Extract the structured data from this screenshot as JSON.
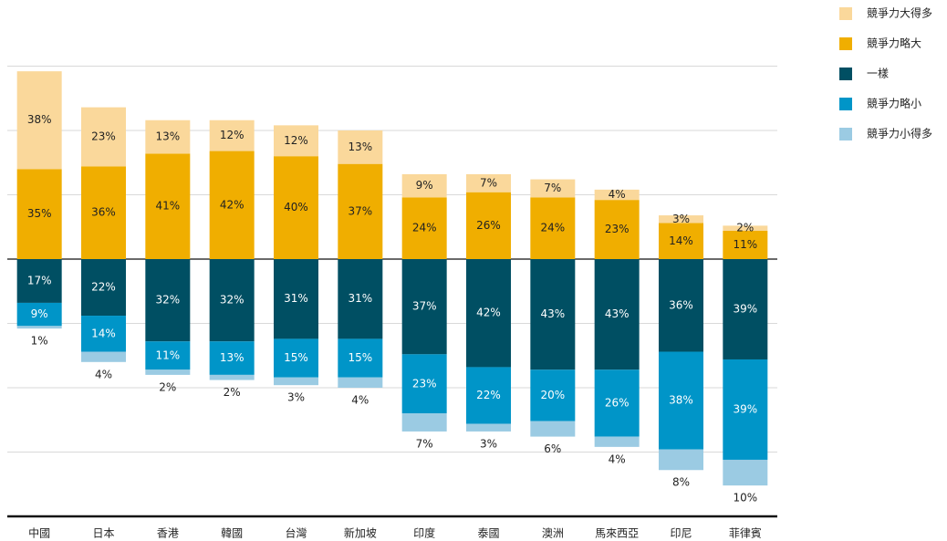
{
  "chart_data": {
    "type": "bar",
    "stacked": true,
    "categories": [
      "中國",
      "日本",
      "香港",
      "韓國",
      "台灣",
      "新加坡",
      "印度",
      "泰國",
      "澳洲",
      "馬來西亞",
      "印尼",
      "菲律賓"
    ],
    "series": [
      {
        "name": "競爭力大得多",
        "color": "#fad89b",
        "values": [
          38,
          23,
          13,
          12,
          12,
          13,
          9,
          7,
          7,
          4,
          3,
          2
        ],
        "value_labels": [
          "38%",
          "23%",
          "13%",
          "12%",
          "12%",
          "13%",
          "9%",
          "7%",
          "7%",
          "4%",
          "3%",
          "2%"
        ]
      },
      {
        "name": "競爭力略大",
        "color": "#f0ae00",
        "values": [
          35,
          36,
          41,
          42,
          40,
          37,
          24,
          26,
          24,
          23,
          14,
          11
        ],
        "value_labels": [
          "35%",
          "36%",
          "41%",
          "42%",
          "40%",
          "37%",
          "24%",
          "26%",
          "24%",
          "23%",
          "14%",
          "11%"
        ]
      },
      {
        "name": "一樣",
        "color": "#004f63",
        "values": [
          -17,
          -22,
          -32,
          -32,
          -31,
          -31,
          -37,
          -42,
          -43,
          -43,
          -36,
          -39
        ],
        "value_labels": [
          "17%",
          "22%",
          "32%",
          "32%",
          "31%",
          "31%",
          "37%",
          "42%",
          "43%",
          "43%",
          "36%",
          "39%"
        ]
      },
      {
        "name": "競爭力略小",
        "color": "#0095c8",
        "values": [
          -9,
          -14,
          -11,
          -13,
          -15,
          -15,
          -23,
          -22,
          -20,
          -26,
          -38,
          -39
        ],
        "value_labels": [
          "9%",
          "14%",
          "11%",
          "13%",
          "15%",
          "15%",
          "23%",
          "22%",
          "20%",
          "26%",
          "38%",
          "39%"
        ]
      },
      {
        "name": "競爭力小得多",
        "color": "#9bcbe3",
        "values": [
          -1,
          -4,
          -2,
          -2,
          -3,
          -4,
          -7,
          -3,
          -6,
          -4,
          -8,
          -10
        ],
        "value_labels": [
          "1%",
          "4%",
          "2%",
          "2%",
          "3%",
          "4%",
          "7%",
          "3%",
          "6%",
          "4%",
          "8%",
          "10%"
        ]
      }
    ],
    "ylim": [
      -100,
      75
    ],
    "yticks": [
      -100,
      -75,
      -50,
      -25,
      0,
      25,
      50,
      75
    ],
    "grid": true,
    "legend": "top-right"
  }
}
